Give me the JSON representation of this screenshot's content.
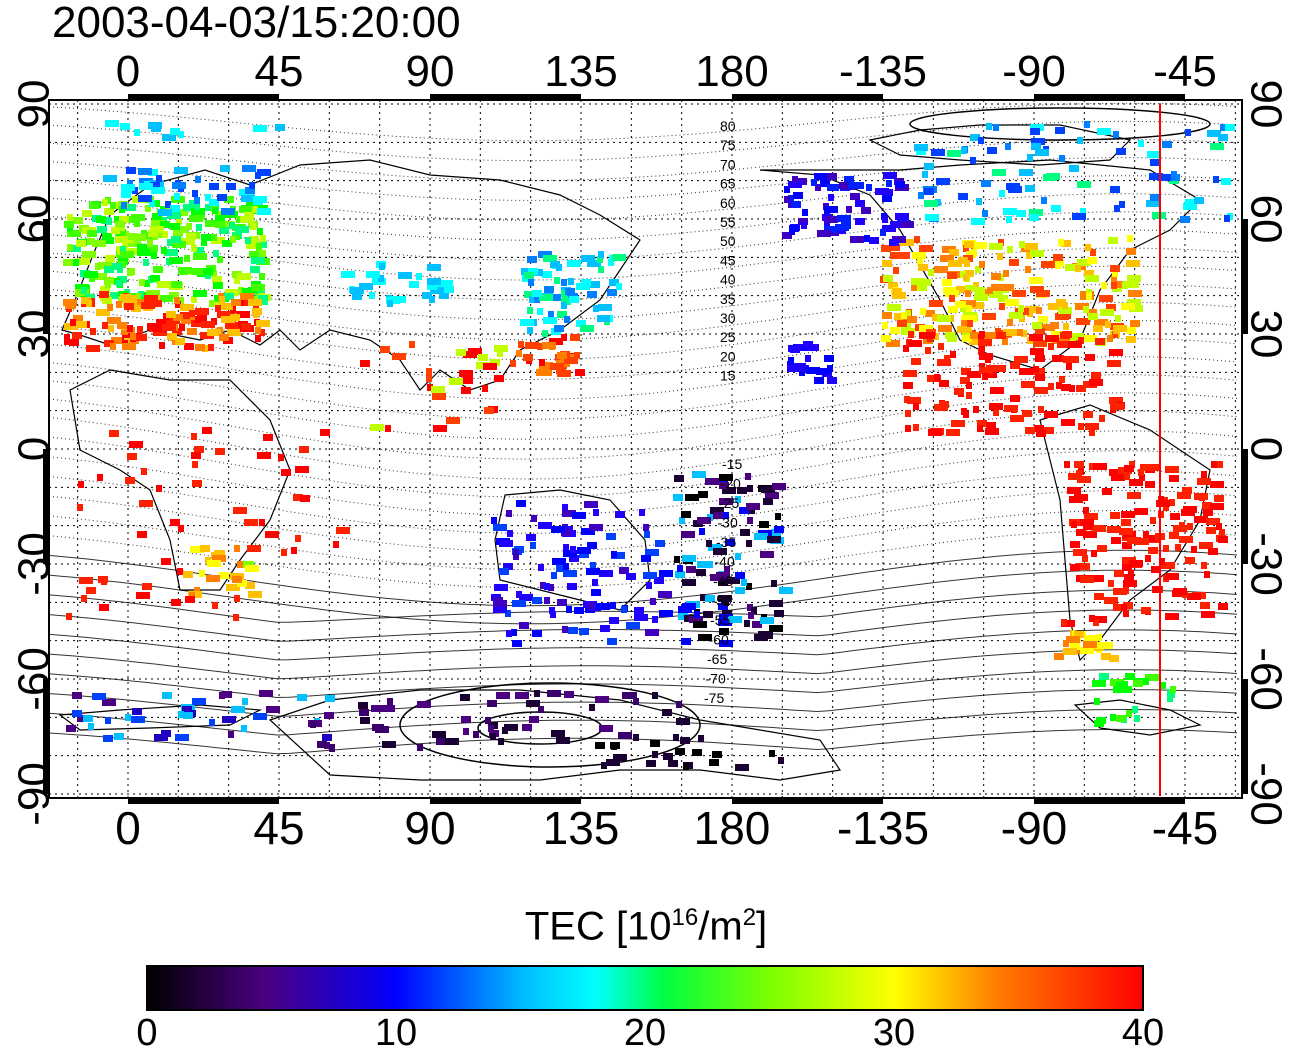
{
  "timestamp": "2003-04-03/15:20:00",
  "map": {
    "top_lon_ticks": [
      "0",
      "45",
      "90",
      "135",
      "180",
      "-135",
      "-90",
      "-45"
    ],
    "bottom_lon_ticks": [
      "0",
      "45",
      "90",
      "135",
      "180",
      "-135",
      "-90",
      "-45"
    ],
    "left_lat_ticks": [
      "90",
      "60",
      "30",
      "0",
      "-30",
      "-60",
      "-90"
    ],
    "right_lat_ticks": [
      "90",
      "60",
      "30",
      "0",
      "-30",
      "-60",
      "-90"
    ],
    "north_mlat_labels": [
      "80",
      "75",
      "70",
      "65",
      "60",
      "55",
      "50",
      "45",
      "40",
      "35",
      "30",
      "25",
      "20",
      "15"
    ],
    "south_mlat_labels": [
      "-15",
      "-20",
      "-25",
      "-30",
      "-35",
      "-40",
      "-45",
      "-50",
      "-55",
      "-60",
      "-65",
      "-70",
      "-75"
    ],
    "terminator_color": "#ff0000",
    "grid": "dotted"
  },
  "colorbar": {
    "title_main": "TEC  [10",
    "title_sup1": "16",
    "title_mid": "/m",
    "title_sup2": "2",
    "title_end": "]",
    "range": [
      0,
      40
    ],
    "ticks": [
      "0",
      "10",
      "20",
      "30",
      "40"
    ],
    "stops": [
      "#000000",
      "#4b0082",
      "#0000ff",
      "#00ffff",
      "#00ff00",
      "#ffff00",
      "#ff8000",
      "#ff0000"
    ]
  }
}
